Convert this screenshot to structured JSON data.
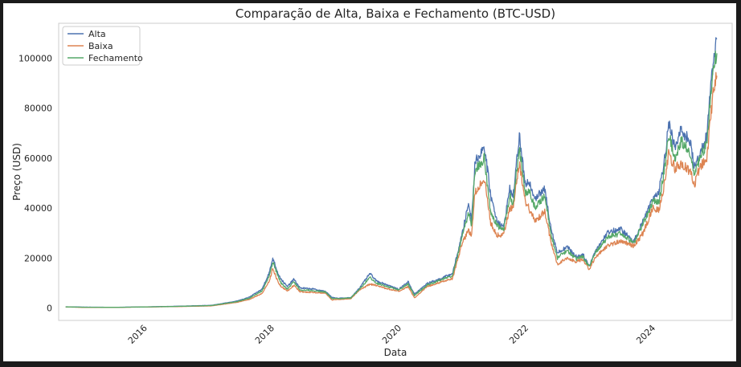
{
  "chart_data": {
    "type": "line",
    "title": "Comparação de Alta, Baixa e Fechamento (BTC-USD)",
    "xlabel": "Data",
    "ylabel": "Preço (USD)",
    "xlim": [
      2014.6,
      2025.2
    ],
    "ylim": [
      -5000,
      114000
    ],
    "grid": false,
    "legend": "top-left",
    "x_ticks": [
      {
        "v": 2016,
        "label": "2016"
      },
      {
        "v": 2018,
        "label": "2018"
      },
      {
        "v": 2020,
        "label": "2020"
      },
      {
        "v": 2022,
        "label": "2022"
      },
      {
        "v": 2024,
        "label": "2024"
      }
    ],
    "y_ticks": [
      {
        "v": 0,
        "label": "0"
      },
      {
        "v": 20000,
        "label": "20000"
      },
      {
        "v": 40000,
        "label": "40000"
      },
      {
        "v": 60000,
        "label": "60000"
      },
      {
        "v": 80000,
        "label": "80000"
      },
      {
        "v": 100000,
        "label": "100000"
      }
    ],
    "series": [
      {
        "name": "Alta",
        "color": "#4c72b0",
        "points": [
          [
            2014.71,
            470
          ],
          [
            2015.0,
            330
          ],
          [
            2015.5,
            260
          ],
          [
            2016.0,
            440
          ],
          [
            2016.5,
            700
          ],
          [
            2017.0,
            1050
          ],
          [
            2017.4,
            2700
          ],
          [
            2017.6,
            4300
          ],
          [
            2017.8,
            7500
          ],
          [
            2017.92,
            14500
          ],
          [
            2017.97,
            20000
          ],
          [
            2018.05,
            14000
          ],
          [
            2018.1,
            11500
          ],
          [
            2018.2,
            8500
          ],
          [
            2018.3,
            11500
          ],
          [
            2018.4,
            8000
          ],
          [
            2018.6,
            7600
          ],
          [
            2018.8,
            6600
          ],
          [
            2018.9,
            4200
          ],
          [
            2019.0,
            3900
          ],
          [
            2019.2,
            4100
          ],
          [
            2019.35,
            8500
          ],
          [
            2019.5,
            13800
          ],
          [
            2019.6,
            10800
          ],
          [
            2019.8,
            9000
          ],
          [
            2019.95,
            7400
          ],
          [
            2020.1,
            10500
          ],
          [
            2020.2,
            5500
          ],
          [
            2020.4,
            9800
          ],
          [
            2020.6,
            11600
          ],
          [
            2020.8,
            13800
          ],
          [
            2020.95,
            29500
          ],
          [
            2021.05,
            42000
          ],
          [
            2021.1,
            35000
          ],
          [
            2021.15,
            58000
          ],
          [
            2021.3,
            64800
          ],
          [
            2021.4,
            45000
          ],
          [
            2021.5,
            35000
          ],
          [
            2021.6,
            32000
          ],
          [
            2021.7,
            48000
          ],
          [
            2021.75,
            44000
          ],
          [
            2021.85,
            69000
          ],
          [
            2021.95,
            48000
          ],
          [
            2022.0,
            51000
          ],
          [
            2022.1,
            44000
          ],
          [
            2022.25,
            47500
          ],
          [
            2022.35,
            32000
          ],
          [
            2022.45,
            22000
          ],
          [
            2022.6,
            24500
          ],
          [
            2022.75,
            20500
          ],
          [
            2022.85,
            21500
          ],
          [
            2022.95,
            16800
          ],
          [
            2023.05,
            23000
          ],
          [
            2023.25,
            30500
          ],
          [
            2023.45,
            31500
          ],
          [
            2023.65,
            26500
          ],
          [
            2023.8,
            35000
          ],
          [
            2023.95,
            44000
          ],
          [
            2024.05,
            47000
          ],
          [
            2024.15,
            62000
          ],
          [
            2024.2,
            73800
          ],
          [
            2024.3,
            64000
          ],
          [
            2024.4,
            71500
          ],
          [
            2024.55,
            66000
          ],
          [
            2024.6,
            56000
          ],
          [
            2024.7,
            62000
          ],
          [
            2024.8,
            69000
          ],
          [
            2024.9,
            99000
          ],
          [
            2024.96,
            108000
          ]
        ]
      },
      {
        "name": "Baixa",
        "color": "#dd8452",
        "points": [
          [
            2014.71,
            390
          ],
          [
            2015.0,
            200
          ],
          [
            2015.5,
            220
          ],
          [
            2016.0,
            370
          ],
          [
            2016.5,
            560
          ],
          [
            2017.0,
            800
          ],
          [
            2017.4,
            2200
          ],
          [
            2017.6,
            3400
          ],
          [
            2017.8,
            5800
          ],
          [
            2017.92,
            11000
          ],
          [
            2017.97,
            16000
          ],
          [
            2018.05,
            10500
          ],
          [
            2018.1,
            8500
          ],
          [
            2018.2,
            6800
          ],
          [
            2018.3,
            9000
          ],
          [
            2018.4,
            6500
          ],
          [
            2018.6,
            6200
          ],
          [
            2018.8,
            6000
          ],
          [
            2018.9,
            3200
          ],
          [
            2019.0,
            3400
          ],
          [
            2019.2,
            3700
          ],
          [
            2019.35,
            7500
          ],
          [
            2019.5,
            9500
          ],
          [
            2019.6,
            9000
          ],
          [
            2019.8,
            7500
          ],
          [
            2019.95,
            6600
          ],
          [
            2020.1,
            8500
          ],
          [
            2020.2,
            4000
          ],
          [
            2020.4,
            8600
          ],
          [
            2020.6,
            10300
          ],
          [
            2020.8,
            11800
          ],
          [
            2020.95,
            26000
          ],
          [
            2021.05,
            31000
          ],
          [
            2021.1,
            29000
          ],
          [
            2021.15,
            46000
          ],
          [
            2021.3,
            52000
          ],
          [
            2021.4,
            34000
          ],
          [
            2021.5,
            29000
          ],
          [
            2021.6,
            29500
          ],
          [
            2021.7,
            40000
          ],
          [
            2021.75,
            40000
          ],
          [
            2021.85,
            58000
          ],
          [
            2021.95,
            42000
          ],
          [
            2022.0,
            40000
          ],
          [
            2022.1,
            34500
          ],
          [
            2022.25,
            39000
          ],
          [
            2022.35,
            26000
          ],
          [
            2022.45,
            17600
          ],
          [
            2022.6,
            20000
          ],
          [
            2022.75,
            18500
          ],
          [
            2022.85,
            19500
          ],
          [
            2022.95,
            15500
          ],
          [
            2023.05,
            20500
          ],
          [
            2023.25,
            25000
          ],
          [
            2023.45,
            27000
          ],
          [
            2023.65,
            24800
          ],
          [
            2023.8,
            30000
          ],
          [
            2023.95,
            40000
          ],
          [
            2024.05,
            39000
          ],
          [
            2024.15,
            52000
          ],
          [
            2024.2,
            62000
          ],
          [
            2024.3,
            56000
          ],
          [
            2024.4,
            58000
          ],
          [
            2024.55,
            54000
          ],
          [
            2024.6,
            49000
          ],
          [
            2024.7,
            57000
          ],
          [
            2024.8,
            60000
          ],
          [
            2024.9,
            86000
          ],
          [
            2024.96,
            93000
          ]
        ]
      },
      {
        "name": "Fechamento",
        "color": "#55a868",
        "points": [
          [
            2014.71,
            430
          ],
          [
            2015.0,
            280
          ],
          [
            2015.5,
            240
          ],
          [
            2016.0,
            410
          ],
          [
            2016.5,
            640
          ],
          [
            2017.0,
            950
          ],
          [
            2017.4,
            2500
          ],
          [
            2017.6,
            3900
          ],
          [
            2017.8,
            6800
          ],
          [
            2017.92,
            13000
          ],
          [
            2017.97,
            18500
          ],
          [
            2018.05,
            13000
          ],
          [
            2018.1,
            10000
          ],
          [
            2018.2,
            7500
          ],
          [
            2018.3,
            10500
          ],
          [
            2018.4,
            7200
          ],
          [
            2018.6,
            7000
          ],
          [
            2018.8,
            6300
          ],
          [
            2018.9,
            3800
          ],
          [
            2019.0,
            3700
          ],
          [
            2019.2,
            4000
          ],
          [
            2019.35,
            8000
          ],
          [
            2019.5,
            12200
          ],
          [
            2019.6,
            10000
          ],
          [
            2019.8,
            8300
          ],
          [
            2019.95,
            7200
          ],
          [
            2020.1,
            9500
          ],
          [
            2020.2,
            5000
          ],
          [
            2020.4,
            9200
          ],
          [
            2020.6,
            11000
          ],
          [
            2020.8,
            13000
          ],
          [
            2020.95,
            28500
          ],
          [
            2021.05,
            38000
          ],
          [
            2021.1,
            33000
          ],
          [
            2021.15,
            55000
          ],
          [
            2021.3,
            60000
          ],
          [
            2021.4,
            38000
          ],
          [
            2021.5,
            33000
          ],
          [
            2021.6,
            31000
          ],
          [
            2021.7,
            45000
          ],
          [
            2021.75,
            42000
          ],
          [
            2021.85,
            64000
          ],
          [
            2021.95,
            46000
          ],
          [
            2022.0,
            47000
          ],
          [
            2022.1,
            40000
          ],
          [
            2022.25,
            45000
          ],
          [
            2022.35,
            29000
          ],
          [
            2022.45,
            20000
          ],
          [
            2022.6,
            23000
          ],
          [
            2022.75,
            19500
          ],
          [
            2022.85,
            20500
          ],
          [
            2022.95,
            16500
          ],
          [
            2023.05,
            22500
          ],
          [
            2023.25,
            28500
          ],
          [
            2023.45,
            29800
          ],
          [
            2023.65,
            26000
          ],
          [
            2023.8,
            34000
          ],
          [
            2023.95,
            42500
          ],
          [
            2024.05,
            43000
          ],
          [
            2024.15,
            58000
          ],
          [
            2024.2,
            70000
          ],
          [
            2024.3,
            60000
          ],
          [
            2024.4,
            67000
          ],
          [
            2024.55,
            62000
          ],
          [
            2024.6,
            53000
          ],
          [
            2024.7,
            60000
          ],
          [
            2024.8,
            66000
          ],
          [
            2024.9,
            96000
          ],
          [
            2024.96,
            102000
          ]
        ]
      }
    ]
  }
}
